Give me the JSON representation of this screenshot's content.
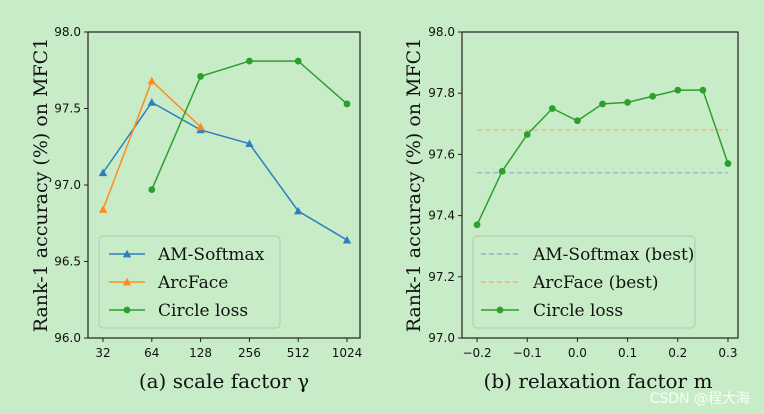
{
  "chart_data": [
    {
      "id": "a",
      "type": "line",
      "caption": "(a) scale factor γ",
      "ylabel": "Rank-1 accuracy (%) on MFC1",
      "xlabel": "",
      "x_type": "categorical",
      "categories": [
        "32",
        "64",
        "128",
        "256",
        "512",
        "1024"
      ],
      "ylim": [
        96.0,
        98.0
      ],
      "yticks": [
        "96.0",
        "96.5",
        "97.0",
        "97.5",
        "98.0"
      ],
      "grid": false,
      "legend_position": "bottom-left",
      "series": [
        {
          "name": "AM-Softmax",
          "color": "#2f7fbf",
          "marker": "triangle",
          "values": [
            97.08,
            97.54,
            97.36,
            97.27,
            96.83,
            96.64
          ]
        },
        {
          "name": "ArcFace",
          "color": "#ff8c1a",
          "marker": "triangle",
          "values": [
            96.84,
            97.68,
            97.38,
            null,
            null,
            null
          ]
        },
        {
          "name": "Circle loss",
          "color": "#2ca02c",
          "marker": "circle",
          "values": [
            null,
            96.97,
            97.71,
            97.81,
            97.81,
            97.53
          ]
        }
      ]
    },
    {
      "id": "b",
      "type": "line",
      "caption": "(b) relaxation factor m",
      "ylabel": "Rank-1 accuracy (%) on MFC1",
      "xlabel": "",
      "xlim": [
        -0.23,
        0.32
      ],
      "xticks": [
        "−0.2",
        "−0.1",
        "0.0",
        "0.1",
        "0.2",
        "0.3"
      ],
      "xtick_values": [
        -0.2,
        -0.1,
        0.0,
        0.1,
        0.2,
        0.3
      ],
      "ylim": [
        97.0,
        98.0
      ],
      "yticks": [
        "97.0",
        "97.2",
        "97.4",
        "97.6",
        "97.8",
        "98.0"
      ],
      "grid": false,
      "legend_position": "bottom-left",
      "series": [
        {
          "name": "AM-Softmax (best)",
          "color": "#8ab4d8",
          "style": "dashed",
          "x": [
            -0.2,
            0.3
          ],
          "values": [
            97.54,
            97.54
          ]
        },
        {
          "name": "ArcFace (best)",
          "color": "#f2b56b",
          "style": "dashed",
          "x": [
            -0.2,
            0.3
          ],
          "values": [
            97.68,
            97.68
          ]
        },
        {
          "name": "Circle loss",
          "color": "#2ca02c",
          "marker": "circle",
          "style": "solid",
          "x": [
            -0.2,
            -0.15,
            -0.1,
            -0.05,
            0.0,
            0.05,
            0.1,
            0.15,
            0.2,
            0.25,
            0.3
          ],
          "values": [
            97.37,
            97.545,
            97.665,
            97.75,
            97.71,
            97.765,
            97.77,
            97.79,
            97.81,
            97.81,
            97.57
          ]
        }
      ]
    }
  ],
  "watermark": "CSDN @程大海"
}
